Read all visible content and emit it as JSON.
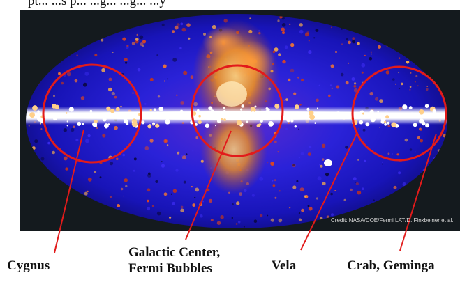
{
  "top_text": "pt... ...s p... ...g... ...g... ...y",
  "credit": "Credit: NASA/DOE/Fermi LAT/D. Finkbeiner et al.",
  "labels": {
    "cygnus": "Cygnus",
    "galactic_center_line1": "Galactic Center,",
    "galactic_center_line2": "Fermi Bubbles",
    "vela": "Vela",
    "crab_geminga": "Crab, Geminga"
  },
  "colors": {
    "panel_bg": "#141a1e",
    "sky_blue": "#1b1ad0",
    "bubble_orange": "#d4661a",
    "plane_white": "#ffffff",
    "circle_red": "#e21b1b"
  }
}
